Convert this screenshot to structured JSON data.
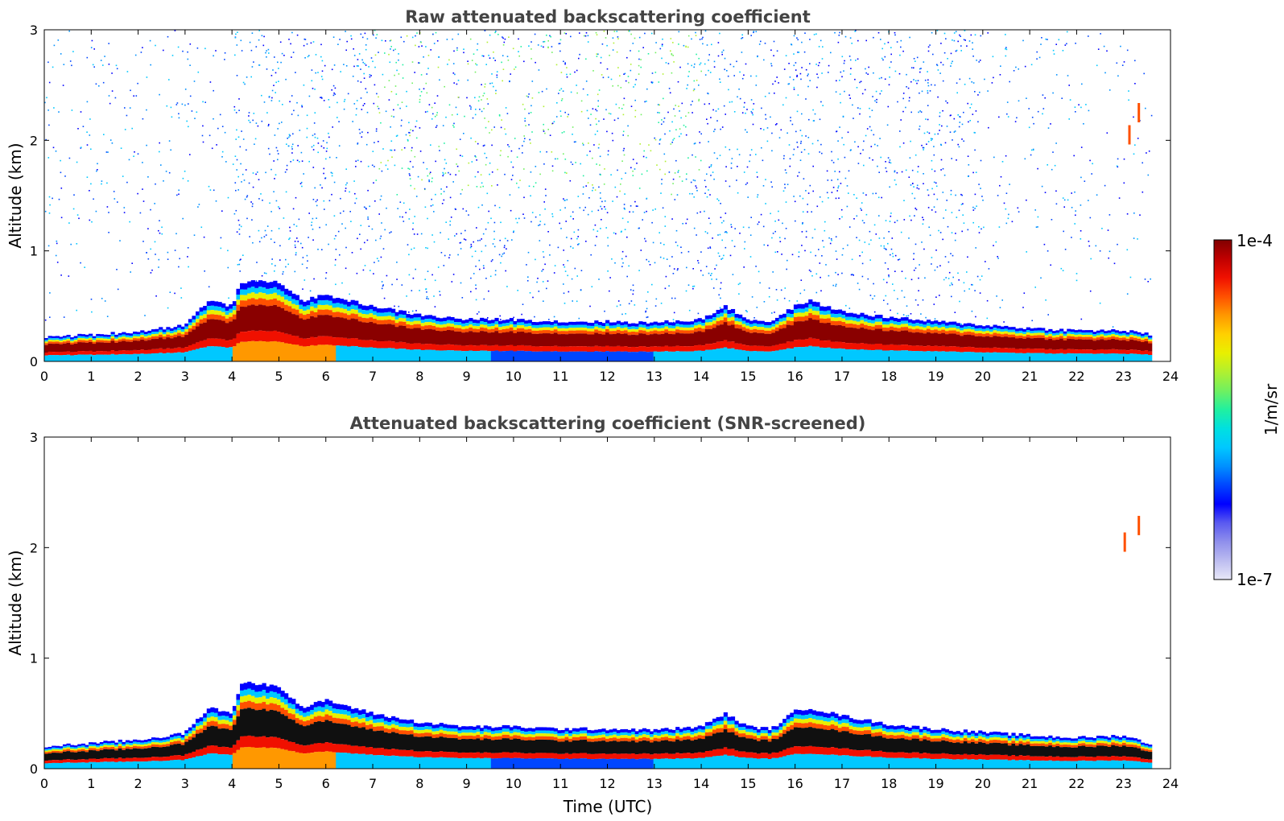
{
  "chart_data": [
    {
      "type": "heatmap",
      "title": "Raw attenuated backscattering coefficient",
      "xlabel": "",
      "ylabel": "Altitude (km)",
      "xlim": [
        0,
        24
      ],
      "ylim": [
        0,
        3
      ],
      "x_ticks": [
        "0",
        "1",
        "2",
        "3",
        "4",
        "5",
        "6",
        "7",
        "8",
        "9",
        "10",
        "11",
        "12",
        "13",
        "14",
        "15",
        "16",
        "17",
        "18",
        "19",
        "20",
        "21",
        "22",
        "23",
        "24"
      ],
      "y_ticks": [
        "0",
        "1",
        "2",
        "3"
      ],
      "data_end_hour": 23.6,
      "layer_top_km": {
        "hours": [
          0,
          1,
          2,
          3,
          3.5,
          4,
          4.2,
          5,
          5.5,
          6,
          7,
          8,
          9,
          10,
          11,
          12,
          13,
          14,
          14.5,
          15,
          15.5,
          16,
          16.3,
          17,
          18,
          19,
          20,
          21,
          22,
          23,
          23.6
        ],
        "values": [
          0.22,
          0.24,
          0.27,
          0.33,
          0.55,
          0.5,
          0.72,
          0.72,
          0.55,
          0.6,
          0.5,
          0.42,
          0.38,
          0.38,
          0.36,
          0.36,
          0.35,
          0.38,
          0.5,
          0.38,
          0.36,
          0.5,
          0.55,
          0.45,
          0.4,
          0.36,
          0.33,
          0.3,
          0.28,
          0.28,
          0.24
        ]
      },
      "aerosol_traces": [
        {
          "hour": 23.1,
          "km": 2.05
        },
        {
          "hour": 23.3,
          "km": 2.25
        }
      ],
      "noise": "high"
    },
    {
      "type": "heatmap",
      "title": "Attenuated backscattering coefficient (SNR-screened)",
      "xlabel": "Time (UTC)",
      "ylabel": "Altitude (km)",
      "xlim": [
        0,
        24
      ],
      "ylim": [
        0,
        3
      ],
      "x_ticks": [
        "0",
        "1",
        "2",
        "3",
        "4",
        "5",
        "6",
        "7",
        "8",
        "9",
        "10",
        "11",
        "12",
        "13",
        "14",
        "15",
        "16",
        "17",
        "18",
        "19",
        "20",
        "21",
        "22",
        "23",
        "24"
      ],
      "y_ticks": [
        "0",
        "1",
        "2",
        "3"
      ],
      "data_end_hour": 23.6,
      "layer_top_km": {
        "hours": [
          0,
          1,
          2,
          3,
          3.5,
          4,
          4.2,
          5,
          5.5,
          6,
          7,
          8,
          9,
          10,
          11,
          12,
          13,
          14,
          14.5,
          15,
          15.5,
          16,
          16.3,
          17,
          18,
          19,
          20,
          21,
          22,
          23,
          23.6
        ],
        "values": [
          0.2,
          0.23,
          0.26,
          0.32,
          0.55,
          0.5,
          0.78,
          0.75,
          0.55,
          0.62,
          0.5,
          0.42,
          0.38,
          0.38,
          0.36,
          0.36,
          0.35,
          0.38,
          0.5,
          0.38,
          0.36,
          0.52,
          0.55,
          0.48,
          0.4,
          0.36,
          0.33,
          0.3,
          0.28,
          0.3,
          0.22
        ]
      },
      "aerosol_traces": [
        {
          "hour": 23.0,
          "km": 2.05
        },
        {
          "hour": 23.3,
          "km": 2.2
        }
      ],
      "noise": "low"
    }
  ],
  "colorbar": {
    "max_label": "1e-4",
    "min_label": "1e-7",
    "label": "1/m/sr",
    "colors": [
      "#e8e8f8",
      "#bcbcf0",
      "#8f8fec",
      "#5a5af0",
      "#0000ff",
      "#0046ff",
      "#0090ff",
      "#00c8ff",
      "#00e0e0",
      "#20f0a0",
      "#70f060",
      "#b0f030",
      "#e8f000",
      "#ffd000",
      "#ff9800",
      "#ff5000",
      "#f01000",
      "#c00000",
      "#800000"
    ]
  }
}
